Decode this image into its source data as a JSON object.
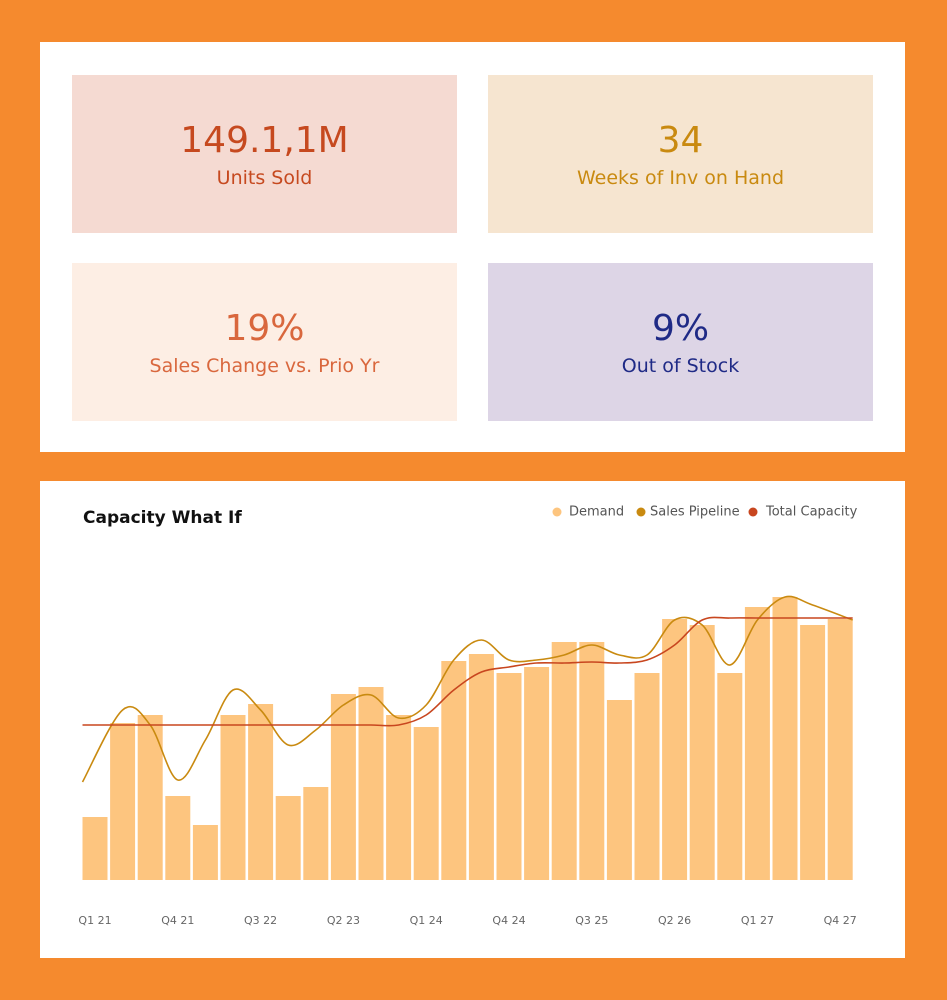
{
  "kpis": [
    {
      "value": "149.1,1M",
      "label": "Units Sold"
    },
    {
      "value": "34",
      "label": "Weeks of Inv on Hand"
    },
    {
      "value": "19%",
      "label": "Sales Change vs. Prio Yr"
    },
    {
      "value": "9%",
      "label": "Out of Stock"
    }
  ],
  "chart_data": {
    "type": "bar",
    "title": "Capacity What If",
    "categories": [
      "Q1 21",
      null,
      null,
      "Q4 21",
      null,
      null,
      "Q3 22",
      null,
      null,
      "Q2 23",
      null,
      null,
      "Q1 24",
      null,
      null,
      "Q4 24",
      null,
      null,
      "Q3 25",
      null,
      null,
      "Q2 26",
      null,
      null,
      "Q1 27",
      null,
      null,
      "Q4 27"
    ],
    "series": [
      {
        "name": "Demand",
        "color": "#fdc57f",
        "values": [
          63,
          157,
          165,
          84,
          55,
          165,
          176,
          84,
          93,
          186,
          193,
          165,
          153,
          219,
          226,
          207,
          213,
          238,
          238,
          180,
          207,
          261,
          255,
          207,
          273,
          283,
          255,
          261
        ]
      },
      {
        "name": "Sales Pipeline",
        "color": "#c98a10",
        "values": [
          98,
          170,
          155,
          100,
          140,
          190,
          170,
          135,
          150,
          175,
          185,
          162,
          175,
          220,
          240,
          220,
          220,
          225,
          235,
          225,
          225,
          260,
          255,
          215,
          260,
          283,
          275,
          260
        ]
      },
      {
        "name": "Total Capacity",
        "color": "#c8461f",
        "values": [
          155,
          155,
          155,
          155,
          155,
          155,
          155,
          155,
          155,
          155,
          155,
          155,
          165,
          190,
          208,
          213,
          217,
          217,
          218,
          217,
          220,
          235,
          260,
          262,
          262,
          262,
          262,
          262
        ]
      }
    ]
  }
}
